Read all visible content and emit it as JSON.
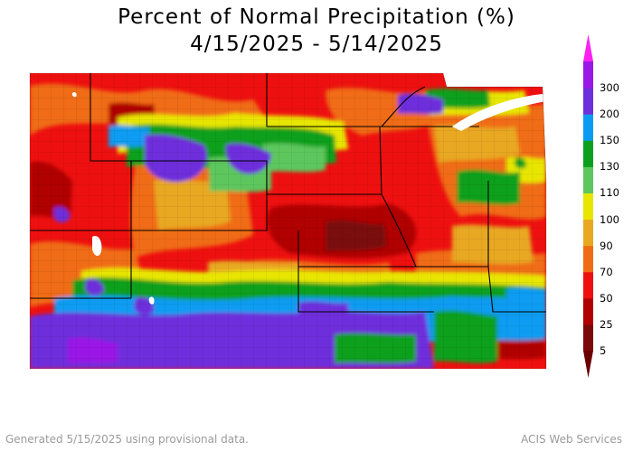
{
  "header": {
    "title": "Percent of Normal Precipitation (%)",
    "date_range": "4/15/2025 - 5/14/2025"
  },
  "legend": {
    "levels": [
      "5",
      "25",
      "50",
      "70",
      "90",
      "100",
      "110",
      "130",
      "150",
      "200",
      "300"
    ],
    "colors": [
      "#7a0a0a",
      "#b00000",
      "#ee1010",
      "#f06c14",
      "#e8a820",
      "#e8e600",
      "#5dc75d",
      "#0aa01e",
      "#0a9cf2",
      "#6e2fdc",
      "#9a18e6"
    ],
    "low_cap_color": "#6a0000",
    "high_cap_color": "#ff1ff0"
  },
  "footer": {
    "generated": "Generated 5/15/2025 using provisional data.",
    "source": "ACIS Web Services"
  }
}
